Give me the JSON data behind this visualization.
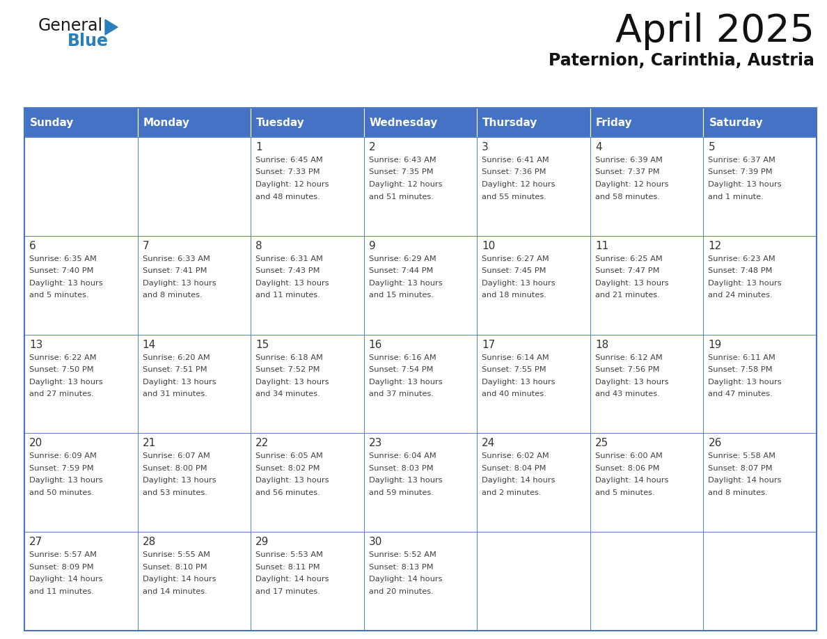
{
  "title": "April 2025",
  "subtitle": "Paternion, Carinthia, Austria",
  "days_of_week": [
    "Sunday",
    "Monday",
    "Tuesday",
    "Wednesday",
    "Thursday",
    "Friday",
    "Saturday"
  ],
  "header_bg": "#4472C4",
  "header_text_color": "#FFFFFF",
  "cell_bg": "#FFFFFF",
  "border_color": "#4472C4",
  "text_color": "#404040",
  "day_num_color": "#333333",
  "logo_general_color": "#1a1a1a",
  "logo_blue_color": "#2980B9",
  "logo_triangle_color": "#2980B9",
  "calendar": [
    [
      {
        "day": "",
        "info": ""
      },
      {
        "day": "",
        "info": ""
      },
      {
        "day": "1",
        "info": "Sunrise: 6:45 AM\nSunset: 7:33 PM\nDaylight: 12 hours\nand 48 minutes."
      },
      {
        "day": "2",
        "info": "Sunrise: 6:43 AM\nSunset: 7:35 PM\nDaylight: 12 hours\nand 51 minutes."
      },
      {
        "day": "3",
        "info": "Sunrise: 6:41 AM\nSunset: 7:36 PM\nDaylight: 12 hours\nand 55 minutes."
      },
      {
        "day": "4",
        "info": "Sunrise: 6:39 AM\nSunset: 7:37 PM\nDaylight: 12 hours\nand 58 minutes."
      },
      {
        "day": "5",
        "info": "Sunrise: 6:37 AM\nSunset: 7:39 PM\nDaylight: 13 hours\nand 1 minute."
      }
    ],
    [
      {
        "day": "6",
        "info": "Sunrise: 6:35 AM\nSunset: 7:40 PM\nDaylight: 13 hours\nand 5 minutes."
      },
      {
        "day": "7",
        "info": "Sunrise: 6:33 AM\nSunset: 7:41 PM\nDaylight: 13 hours\nand 8 minutes."
      },
      {
        "day": "8",
        "info": "Sunrise: 6:31 AM\nSunset: 7:43 PM\nDaylight: 13 hours\nand 11 minutes."
      },
      {
        "day": "9",
        "info": "Sunrise: 6:29 AM\nSunset: 7:44 PM\nDaylight: 13 hours\nand 15 minutes."
      },
      {
        "day": "10",
        "info": "Sunrise: 6:27 AM\nSunset: 7:45 PM\nDaylight: 13 hours\nand 18 minutes."
      },
      {
        "day": "11",
        "info": "Sunrise: 6:25 AM\nSunset: 7:47 PM\nDaylight: 13 hours\nand 21 minutes."
      },
      {
        "day": "12",
        "info": "Sunrise: 6:23 AM\nSunset: 7:48 PM\nDaylight: 13 hours\nand 24 minutes."
      }
    ],
    [
      {
        "day": "13",
        "info": "Sunrise: 6:22 AM\nSunset: 7:50 PM\nDaylight: 13 hours\nand 27 minutes."
      },
      {
        "day": "14",
        "info": "Sunrise: 6:20 AM\nSunset: 7:51 PM\nDaylight: 13 hours\nand 31 minutes."
      },
      {
        "day": "15",
        "info": "Sunrise: 6:18 AM\nSunset: 7:52 PM\nDaylight: 13 hours\nand 34 minutes."
      },
      {
        "day": "16",
        "info": "Sunrise: 6:16 AM\nSunset: 7:54 PM\nDaylight: 13 hours\nand 37 minutes."
      },
      {
        "day": "17",
        "info": "Sunrise: 6:14 AM\nSunset: 7:55 PM\nDaylight: 13 hours\nand 40 minutes."
      },
      {
        "day": "18",
        "info": "Sunrise: 6:12 AM\nSunset: 7:56 PM\nDaylight: 13 hours\nand 43 minutes."
      },
      {
        "day": "19",
        "info": "Sunrise: 6:11 AM\nSunset: 7:58 PM\nDaylight: 13 hours\nand 47 minutes."
      }
    ],
    [
      {
        "day": "20",
        "info": "Sunrise: 6:09 AM\nSunset: 7:59 PM\nDaylight: 13 hours\nand 50 minutes."
      },
      {
        "day": "21",
        "info": "Sunrise: 6:07 AM\nSunset: 8:00 PM\nDaylight: 13 hours\nand 53 minutes."
      },
      {
        "day": "22",
        "info": "Sunrise: 6:05 AM\nSunset: 8:02 PM\nDaylight: 13 hours\nand 56 minutes."
      },
      {
        "day": "23",
        "info": "Sunrise: 6:04 AM\nSunset: 8:03 PM\nDaylight: 13 hours\nand 59 minutes."
      },
      {
        "day": "24",
        "info": "Sunrise: 6:02 AM\nSunset: 8:04 PM\nDaylight: 14 hours\nand 2 minutes."
      },
      {
        "day": "25",
        "info": "Sunrise: 6:00 AM\nSunset: 8:06 PM\nDaylight: 14 hours\nand 5 minutes."
      },
      {
        "day": "26",
        "info": "Sunrise: 5:58 AM\nSunset: 8:07 PM\nDaylight: 14 hours\nand 8 minutes."
      }
    ],
    [
      {
        "day": "27",
        "info": "Sunrise: 5:57 AM\nSunset: 8:09 PM\nDaylight: 14 hours\nand 11 minutes."
      },
      {
        "day": "28",
        "info": "Sunrise: 5:55 AM\nSunset: 8:10 PM\nDaylight: 14 hours\nand 14 minutes."
      },
      {
        "day": "29",
        "info": "Sunrise: 5:53 AM\nSunset: 8:11 PM\nDaylight: 14 hours\nand 17 minutes."
      },
      {
        "day": "30",
        "info": "Sunrise: 5:52 AM\nSunset: 8:13 PM\nDaylight: 14 hours\nand 20 minutes."
      },
      {
        "day": "",
        "info": ""
      },
      {
        "day": "",
        "info": ""
      },
      {
        "day": "",
        "info": ""
      }
    ]
  ]
}
